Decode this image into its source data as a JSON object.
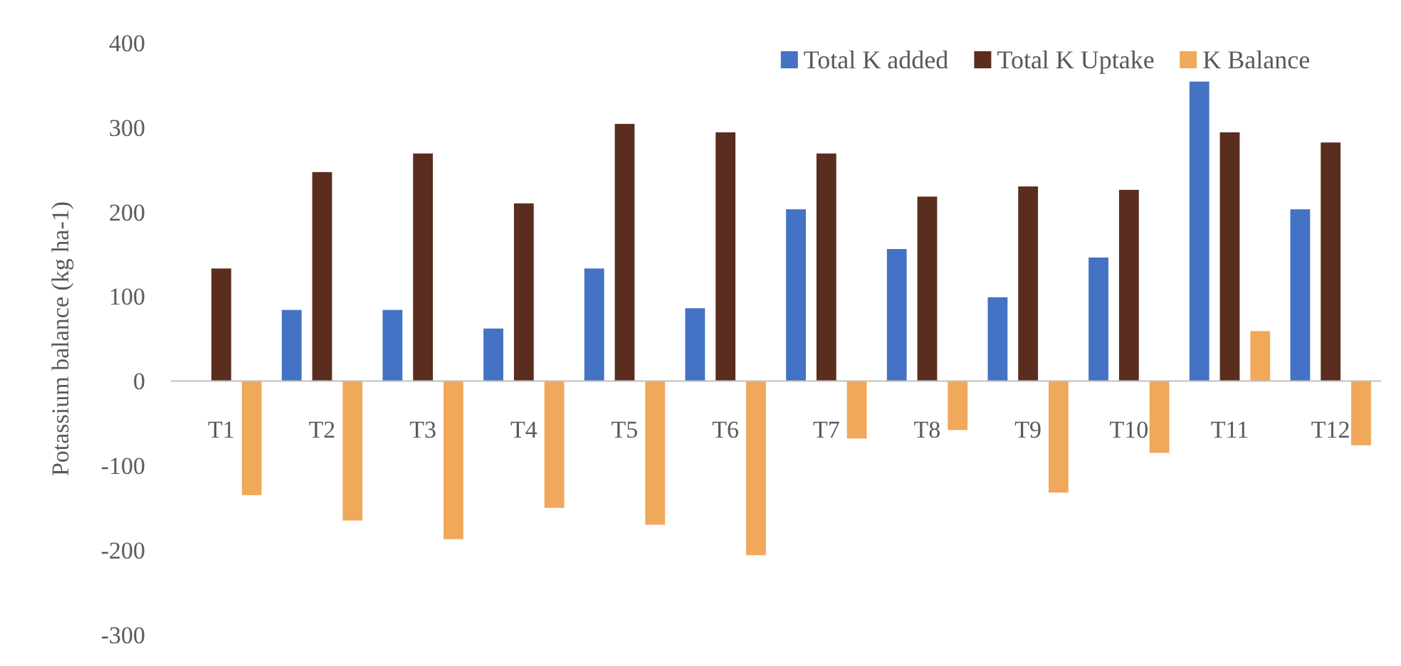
{
  "chart_data": {
    "type": "bar",
    "ylabel": "Potassium balance (kg ha-1)",
    "categories": [
      "T1",
      "T2",
      "T3",
      "T4",
      "T5",
      "T6",
      "T7",
      "T8",
      "T9",
      "T10",
      "T11",
      "T12"
    ],
    "series": [
      {
        "name": "Total K added",
        "color": "#4472c4",
        "values": [
          0,
          84,
          84,
          62,
          133,
          86,
          203,
          156,
          99,
          146,
          354,
          203
        ]
      },
      {
        "name": "Total K Uptake",
        "color": "#5a2d1f",
        "values": [
          133,
          247,
          269,
          210,
          304,
          294,
          269,
          218,
          230,
          226,
          294,
          282
        ]
      },
      {
        "name": "K Balance",
        "color": "#f0a85a",
        "values": [
          -135,
          -165,
          -187,
          -150,
          -170,
          -206,
          -68,
          -58,
          -132,
          -85,
          59,
          -76
        ]
      }
    ],
    "ylim": [
      -300,
      400
    ],
    "yticks": [
      -300,
      -200,
      -100,
      0,
      100,
      200,
      300,
      400
    ],
    "legend": "top right",
    "grid": false
  }
}
